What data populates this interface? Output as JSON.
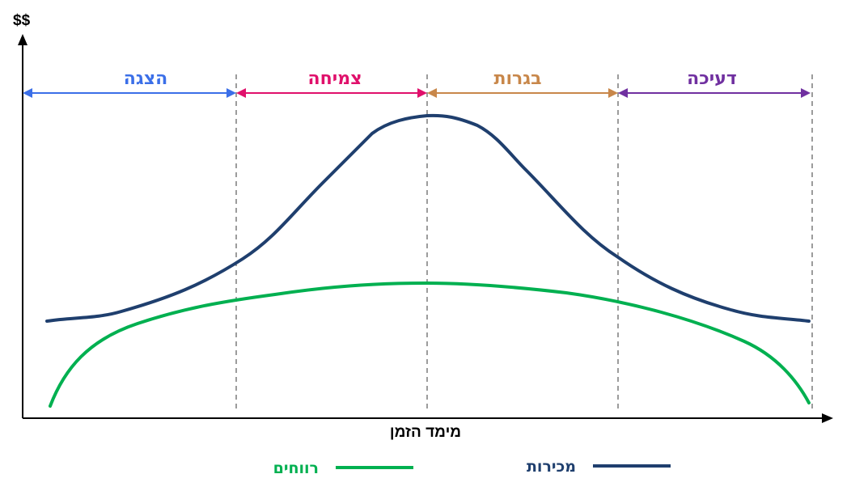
{
  "axes": {
    "y_label": "$$",
    "x_label": "מימד הזמן"
  },
  "stages": [
    {
      "label": "הצגה",
      "color": "#3b6fe8"
    },
    {
      "label": "צמיחה",
      "color": "#e0106b"
    },
    {
      "label": "בגרות",
      "color": "#c8874a"
    },
    {
      "label": "דעיכה",
      "color": "#7030a0"
    }
  ],
  "curves": {
    "sales": {
      "color": "#1f3f6e"
    },
    "profits": {
      "color": "#00b050"
    }
  },
  "legend": {
    "sales_label": "מכירות",
    "profits_label": "רווחים",
    "sales_color": "#1f3f6e",
    "profits_color": "#00b050"
  }
}
